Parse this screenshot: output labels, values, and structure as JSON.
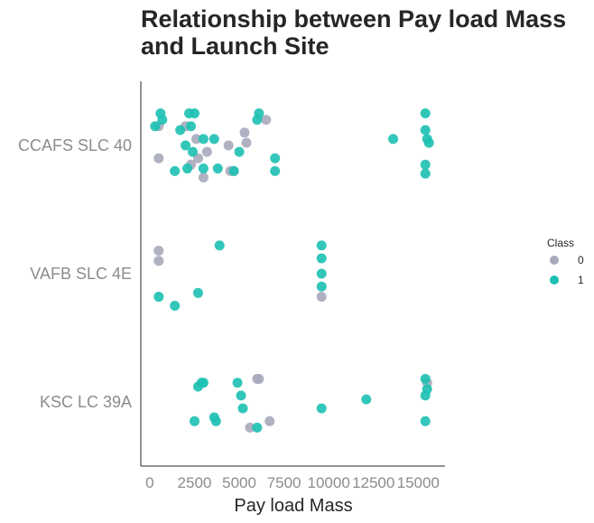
{
  "chart_data": {
    "type": "scatter",
    "title_lines": [
      "Relationship between Pay load Mass",
      "and Launch Site"
    ],
    "xlabel": "Pay load Mass",
    "ylabel": "",
    "xlim": [
      -500,
      16500
    ],
    "xticks": [
      0,
      2500,
      5000,
      7500,
      10000,
      12500,
      15000
    ],
    "xtick_labels": [
      "0",
      "2500",
      "5000",
      "7500",
      "10000",
      "12500",
      "15000"
    ],
    "categories": [
      "CCAFS SLC 40",
      "VAFB SLC 4E",
      "KSC LC 39A"
    ],
    "grid": false,
    "legend": {
      "title": "Class",
      "placement": "right",
      "entries": [
        "0",
        "1"
      ]
    },
    "colors": {
      "0": "#a7aabb",
      "1": "#1cc0b2"
    },
    "series": [
      {
        "name": "0",
        "points": [
          {
            "site": "CCAFS SLC 40",
            "x": 500,
            "j": -0.15
          },
          {
            "site": "CCAFS SLC 40",
            "x": 500,
            "j": 0.1
          },
          {
            "site": "CCAFS SLC 40",
            "x": 2000,
            "j": -0.15
          },
          {
            "site": "CCAFS SLC 40",
            "x": 2300,
            "j": 0.15
          },
          {
            "site": "CCAFS SLC 40",
            "x": 2600,
            "j": -0.05
          },
          {
            "site": "CCAFS SLC 40",
            "x": 2700,
            "j": 0.1
          },
          {
            "site": "CCAFS SLC 40",
            "x": 3000,
            "j": 0.25
          },
          {
            "site": "CCAFS SLC 40",
            "x": 3200,
            "j": 0.05
          },
          {
            "site": "CCAFS SLC 40",
            "x": 4400,
            "j": 0.0
          },
          {
            "site": "CCAFS SLC 40",
            "x": 4500,
            "j": 0.2
          },
          {
            "site": "CCAFS SLC 40",
            "x": 4700,
            "j": 0.2
          },
          {
            "site": "CCAFS SLC 40",
            "x": 5300,
            "j": -0.1
          },
          {
            "site": "CCAFS SLC 40",
            "x": 5400,
            "j": -0.02
          },
          {
            "site": "CCAFS SLC 40",
            "x": 6500,
            "j": -0.2
          },
          {
            "site": "VAFB SLC 4E",
            "x": 500,
            "j": -0.18
          },
          {
            "site": "VAFB SLC 4E",
            "x": 500,
            "j": -0.1
          },
          {
            "site": "VAFB SLC 4E",
            "x": 9600,
            "j": 0.18
          },
          {
            "site": "KSC LC 39A",
            "x": 5600,
            "j": 0.2
          },
          {
            "site": "KSC LC 39A",
            "x": 6000,
            "j": -0.18
          },
          {
            "site": "KSC LC 39A",
            "x": 6100,
            "j": -0.18
          },
          {
            "site": "KSC LC 39A",
            "x": 6700,
            "j": 0.15
          },
          {
            "site": "KSC LC 39A",
            "x": 15500,
            "j": -0.15
          }
        ]
      },
      {
        "name": "1",
        "points": [
          {
            "site": "CCAFS SLC 40",
            "x": 300,
            "j": -0.15
          },
          {
            "site": "CCAFS SLC 40",
            "x": 600,
            "j": -0.25
          },
          {
            "site": "CCAFS SLC 40",
            "x": 700,
            "j": -0.2
          },
          {
            "site": "CCAFS SLC 40",
            "x": 1700,
            "j": -0.12
          },
          {
            "site": "CCAFS SLC 40",
            "x": 1400,
            "j": 0.2
          },
          {
            "site": "CCAFS SLC 40",
            "x": 2000,
            "j": 0.0
          },
          {
            "site": "CCAFS SLC 40",
            "x": 2200,
            "j": -0.25
          },
          {
            "site": "CCAFS SLC 40",
            "x": 2300,
            "j": -0.15
          },
          {
            "site": "CCAFS SLC 40",
            "x": 2500,
            "j": -0.25
          },
          {
            "site": "CCAFS SLC 40",
            "x": 2400,
            "j": 0.05
          },
          {
            "site": "CCAFS SLC 40",
            "x": 2100,
            "j": 0.18
          },
          {
            "site": "CCAFS SLC 40",
            "x": 3000,
            "j": -0.05
          },
          {
            "site": "CCAFS SLC 40",
            "x": 3000,
            "j": 0.18
          },
          {
            "site": "CCAFS SLC 40",
            "x": 3600,
            "j": -0.05
          },
          {
            "site": "CCAFS SLC 40",
            "x": 3800,
            "j": 0.18
          },
          {
            "site": "CCAFS SLC 40",
            "x": 4700,
            "j": 0.2
          },
          {
            "site": "CCAFS SLC 40",
            "x": 5000,
            "j": 0.05
          },
          {
            "site": "CCAFS SLC 40",
            "x": 6000,
            "j": -0.2
          },
          {
            "site": "CCAFS SLC 40",
            "x": 6100,
            "j": -0.25
          },
          {
            "site": "CCAFS SLC 40",
            "x": 7000,
            "j": 0.1
          },
          {
            "site": "CCAFS SLC 40",
            "x": 7000,
            "j": 0.2
          },
          {
            "site": "CCAFS SLC 40",
            "x": 13600,
            "j": -0.05
          },
          {
            "site": "CCAFS SLC 40",
            "x": 15400,
            "j": -0.25
          },
          {
            "site": "CCAFS SLC 40",
            "x": 15400,
            "j": -0.12
          },
          {
            "site": "CCAFS SLC 40",
            "x": 15500,
            "j": -0.05
          },
          {
            "site": "CCAFS SLC 40",
            "x": 15600,
            "j": -0.02
          },
          {
            "site": "CCAFS SLC 40",
            "x": 15400,
            "j": 0.15
          },
          {
            "site": "CCAFS SLC 40",
            "x": 15400,
            "j": 0.22
          },
          {
            "site": "VAFB SLC 4E",
            "x": 500,
            "j": 0.18
          },
          {
            "site": "VAFB SLC 4E",
            "x": 1400,
            "j": 0.25
          },
          {
            "site": "VAFB SLC 4E",
            "x": 2700,
            "j": 0.15
          },
          {
            "site": "VAFB SLC 4E",
            "x": 3900,
            "j": -0.22
          },
          {
            "site": "VAFB SLC 4E",
            "x": 9600,
            "j": -0.22
          },
          {
            "site": "VAFB SLC 4E",
            "x": 9600,
            "j": -0.12
          },
          {
            "site": "VAFB SLC 4E",
            "x": 9600,
            "j": 0.0
          },
          {
            "site": "VAFB SLC 4E",
            "x": 9600,
            "j": 0.1
          },
          {
            "site": "KSC LC 39A",
            "x": 2500,
            "j": 0.15
          },
          {
            "site": "KSC LC 39A",
            "x": 2700,
            "j": -0.12
          },
          {
            "site": "KSC LC 39A",
            "x": 2900,
            "j": -0.15
          },
          {
            "site": "KSC LC 39A",
            "x": 3000,
            "j": -0.15
          },
          {
            "site": "KSC LC 39A",
            "x": 3600,
            "j": 0.12
          },
          {
            "site": "KSC LC 39A",
            "x": 3700,
            "j": 0.15
          },
          {
            "site": "KSC LC 39A",
            "x": 4900,
            "j": -0.15
          },
          {
            "site": "KSC LC 39A",
            "x": 5100,
            "j": -0.05
          },
          {
            "site": "KSC LC 39A",
            "x": 5200,
            "j": 0.05
          },
          {
            "site": "KSC LC 39A",
            "x": 6000,
            "j": 0.2
          },
          {
            "site": "KSC LC 39A",
            "x": 9600,
            "j": 0.05
          },
          {
            "site": "KSC LC 39A",
            "x": 12100,
            "j": -0.02
          },
          {
            "site": "KSC LC 39A",
            "x": 15400,
            "j": -0.18
          },
          {
            "site": "KSC LC 39A",
            "x": 15500,
            "j": -0.1
          },
          {
            "site": "KSC LC 39A",
            "x": 15400,
            "j": -0.05
          },
          {
            "site": "KSC LC 39A",
            "x": 15400,
            "j": 0.15
          }
        ]
      }
    ]
  }
}
